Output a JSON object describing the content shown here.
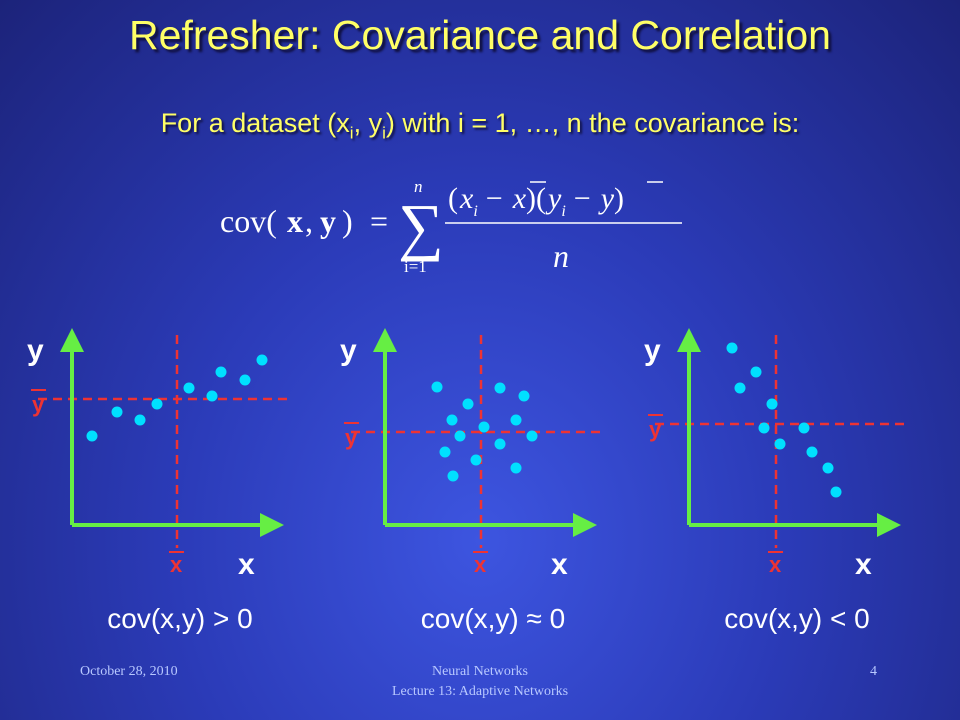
{
  "title": "Refresher: Covariance and Correlation",
  "subtitle": {
    "before": "For a dataset (x",
    "sub1": "i",
    "mid": ", y",
    "sub2": "i",
    "after": ") with i = 1, …, n the covariance is:"
  },
  "formula": {
    "lhs_open": "cov(",
    "lhs_x": "x",
    "comma": ",",
    "lhs_y": "y",
    "lhs_close": ")",
    "equals": "=",
    "sigma": "∑",
    "sum_top": "n",
    "sum_bottom": "i=1",
    "num_open": "(",
    "num_x": "x",
    "num_xi": "i",
    "num_minus1": "−",
    "num_xbar": "x",
    "num_mid": ")(",
    "num_y": "y",
    "num_yi": "i",
    "num_minus2": "−",
    "num_ybar": "y",
    "num_close": ")",
    "denominator": "n"
  },
  "panels": [
    {
      "y_label": "y",
      "y_bar_label": "y",
      "x_bar_label": "x",
      "x_label": "x",
      "caption": "cov(x,y) > 0"
    },
    {
      "y_label": "y",
      "y_bar_label": "y",
      "x_bar_label": "x",
      "x_label": "x",
      "caption": "cov(x,y) ≈ 0"
    },
    {
      "y_label": "y",
      "y_bar_label": "y",
      "x_bar_label": "x",
      "x_label": "x",
      "caption": "cov(x,y) < 0"
    }
  ],
  "footer": {
    "date": "October 28, 2010",
    "course": "Neural Networks",
    "lecture": "Lecture 13: Adaptive Networks",
    "page": "4"
  }
}
